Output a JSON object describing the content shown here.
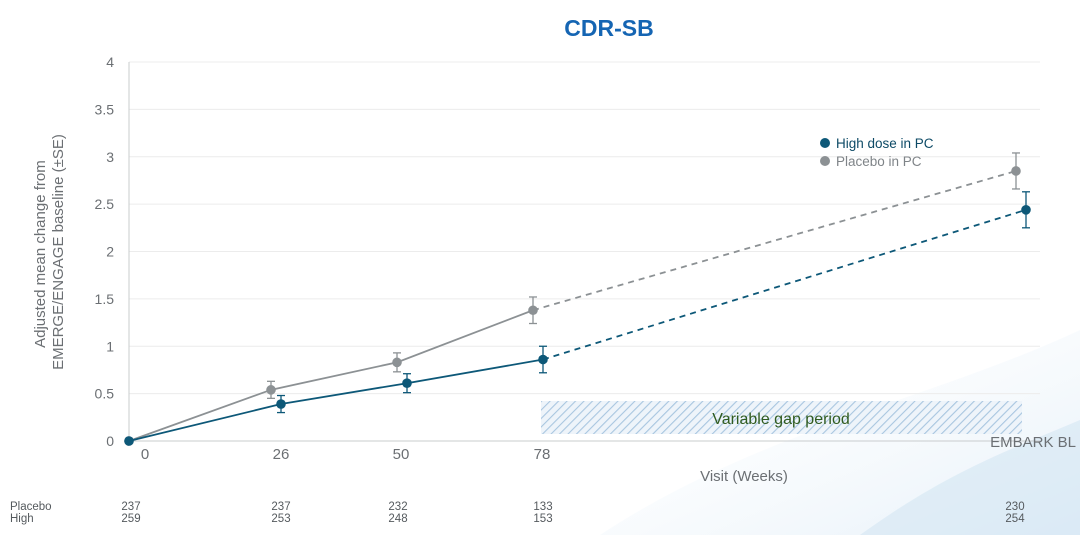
{
  "chart_data": {
    "type": "line",
    "title": "CDR-SB",
    "xlabel": "Visit (Weeks)",
    "ylabel_lines": [
      "Adjusted mean change from",
      "EMERGE/ENGAGE baseline (±SE)"
    ],
    "ylim": [
      0,
      4
    ],
    "yticks": [
      "0",
      "0.5",
      "1",
      "1.5",
      "2",
      "2.5",
      "3",
      "3.5",
      "4"
    ],
    "x_categories": [
      "0",
      "26",
      "50",
      "78",
      "EMBARK BL"
    ],
    "series": [
      {
        "name": "High dose in PC",
        "color": "#0d5878",
        "y": [
          0,
          0.39,
          0.61,
          0.86,
          2.44
        ],
        "se": [
          0,
          0.09,
          0.1,
          0.14,
          0.19
        ],
        "dashed_from_index": 3
      },
      {
        "name": "Placebo in PC",
        "color": "#8c9194",
        "y": [
          0,
          0.54,
          0.83,
          1.38,
          2.85
        ],
        "se": [
          0,
          0.09,
          0.1,
          0.14,
          0.19
        ],
        "dashed_from_index": 3
      }
    ],
    "annotation": "Variable gap period",
    "grid": true,
    "legend_position": "top-right",
    "n_at_risk": {
      "rows": [
        {
          "label": "Placebo",
          "values": [
            "237",
            "237",
            "232",
            "133",
            "230"
          ]
        },
        {
          "label": "High",
          "values": [
            "259",
            "253",
            "248",
            "153",
            "254"
          ]
        }
      ]
    }
  }
}
